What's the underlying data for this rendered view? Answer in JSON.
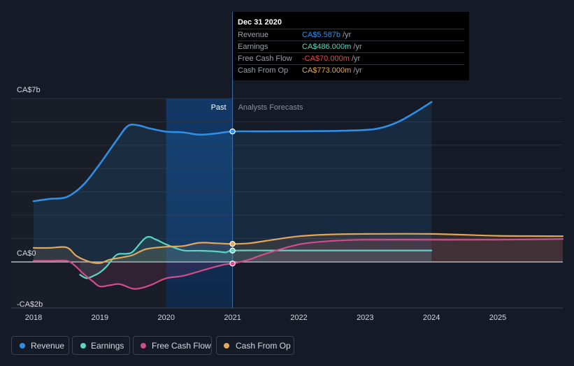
{
  "chart_data": {
    "type": "line",
    "title": "",
    "xlabel": "",
    "ylabel": "",
    "y_axis": {
      "unit": "CA$ billions",
      "ylim": [
        -2.0,
        7.0
      ],
      "tick_labels": [
        {
          "value": 7,
          "label": "CA$7b"
        },
        {
          "value": 0,
          "label": "CA$0"
        },
        {
          "value": -2,
          "label": "-CA$2b"
        }
      ]
    },
    "x_axis": {
      "xlim": [
        2018.0,
        2025.98
      ],
      "ticks": [
        {
          "value": 2018,
          "label": "2018"
        },
        {
          "value": 2019,
          "label": "2019"
        },
        {
          "value": 2020,
          "label": "2020"
        },
        {
          "value": 2021,
          "label": "2021"
        },
        {
          "value": 2022,
          "label": "2022"
        },
        {
          "value": 2023,
          "label": "2023"
        },
        {
          "value": 2024,
          "label": "2024"
        },
        {
          "value": 2025,
          "label": "2025"
        }
      ]
    },
    "past_label": "Past",
    "forecast_label": "Analysts Forecasts",
    "divider_x": 2021.0,
    "highlight_range": [
      2020.0,
      2021.0
    ],
    "series": [
      {
        "name": "Revenue",
        "color": "#2f8fe6",
        "points": [
          [
            2018.0,
            2.6
          ],
          [
            2018.25,
            2.7
          ],
          [
            2018.5,
            2.78
          ],
          [
            2018.75,
            3.3
          ],
          [
            2019.0,
            4.2
          ],
          [
            2019.25,
            5.2
          ],
          [
            2019.42,
            5.82
          ],
          [
            2019.58,
            5.85
          ],
          [
            2019.75,
            5.72
          ],
          [
            2020.0,
            5.58
          ],
          [
            2020.25,
            5.55
          ],
          [
            2020.5,
            5.45
          ],
          [
            2020.75,
            5.5
          ],
          [
            2021.0,
            5.587
          ],
          [
            2021.5,
            5.59
          ],
          [
            2022.0,
            5.6
          ],
          [
            2022.5,
            5.61
          ],
          [
            2023.0,
            5.65
          ],
          [
            2023.25,
            5.75
          ],
          [
            2023.5,
            6.0
          ],
          [
            2023.75,
            6.4
          ],
          [
            2024.0,
            6.85
          ]
        ],
        "marker_value": "CA$5.587b"
      },
      {
        "name": "Earnings",
        "color": "#5ad6c3",
        "points": [
          [
            2018.7,
            -0.55
          ],
          [
            2018.8,
            -0.7
          ],
          [
            2018.9,
            -0.6
          ],
          [
            2019.0,
            -0.45
          ],
          [
            2019.1,
            -0.2
          ],
          [
            2019.25,
            0.3
          ],
          [
            2019.4,
            0.35
          ],
          [
            2019.5,
            0.45
          ],
          [
            2019.7,
            1.05
          ],
          [
            2019.85,
            0.95
          ],
          [
            2020.0,
            0.75
          ],
          [
            2020.25,
            0.5
          ],
          [
            2020.5,
            0.48
          ],
          [
            2020.75,
            0.45
          ],
          [
            2020.9,
            0.41
          ],
          [
            2021.0,
            0.486
          ],
          [
            2021.5,
            0.49
          ],
          [
            2022.0,
            0.49
          ],
          [
            2023.0,
            0.49
          ],
          [
            2024.0,
            0.49
          ]
        ],
        "marker_value": "CA$486.000m"
      },
      {
        "name": "Free Cash Flow",
        "color": "#d14d8b",
        "points": [
          [
            2018.0,
            0.05
          ],
          [
            2018.25,
            0.05
          ],
          [
            2018.5,
            0.05
          ],
          [
            2018.62,
            -0.15
          ],
          [
            2018.75,
            -0.5
          ],
          [
            2018.9,
            -0.85
          ],
          [
            2019.0,
            -1.05
          ],
          [
            2019.15,
            -1.0
          ],
          [
            2019.3,
            -0.95
          ],
          [
            2019.5,
            -1.15
          ],
          [
            2019.65,
            -1.1
          ],
          [
            2019.8,
            -0.95
          ],
          [
            2020.0,
            -0.7
          ],
          [
            2020.25,
            -0.6
          ],
          [
            2020.5,
            -0.4
          ],
          [
            2020.75,
            -0.2
          ],
          [
            2020.9,
            -0.1
          ],
          [
            2021.0,
            -0.07
          ],
          [
            2021.25,
            0.1
          ],
          [
            2021.5,
            0.35
          ],
          [
            2022.0,
            0.75
          ],
          [
            2022.5,
            0.9
          ],
          [
            2023.0,
            0.95
          ],
          [
            2024.0,
            0.95
          ],
          [
            2025.0,
            0.95
          ],
          [
            2025.98,
            0.98
          ]
        ],
        "marker_value": "-CA$70.000m"
      },
      {
        "name": "Cash From Op",
        "color": "#e3a65a",
        "points": [
          [
            2018.0,
            0.6
          ],
          [
            2018.25,
            0.6
          ],
          [
            2018.5,
            0.62
          ],
          [
            2018.65,
            0.25
          ],
          [
            2018.85,
            0.0
          ],
          [
            2019.0,
            -0.05
          ],
          [
            2019.15,
            0.1
          ],
          [
            2019.35,
            0.2
          ],
          [
            2019.5,
            0.3
          ],
          [
            2019.7,
            0.55
          ],
          [
            2020.0,
            0.65
          ],
          [
            2020.25,
            0.68
          ],
          [
            2020.5,
            0.82
          ],
          [
            2020.75,
            0.8
          ],
          [
            2021.0,
            0.773
          ],
          [
            2021.25,
            0.8
          ],
          [
            2021.5,
            0.9
          ],
          [
            2022.0,
            1.1
          ],
          [
            2022.5,
            1.18
          ],
          [
            2023.0,
            1.2
          ],
          [
            2024.0,
            1.2
          ],
          [
            2025.0,
            1.12
          ],
          [
            2025.98,
            1.1
          ]
        ],
        "marker_value": "CA$773.000m"
      }
    ]
  },
  "tooltip": {
    "date": "Dec 31 2020",
    "unit": "/yr",
    "rows": [
      {
        "label": "Revenue",
        "value": "CA$5.587b",
        "color": "#2f8fe6"
      },
      {
        "label": "Earnings",
        "value": "CA$486.000m",
        "color": "#5ad6c3"
      },
      {
        "label": "Free Cash Flow",
        "value": "-CA$70.000m",
        "color": "#e24b4b"
      },
      {
        "label": "Cash From Op",
        "value": "CA$773.000m",
        "color": "#e3a65a"
      }
    ]
  },
  "legend": {
    "items": [
      {
        "label": "Revenue",
        "color": "#2f8fe6"
      },
      {
        "label": "Earnings",
        "color": "#5ad6c3"
      },
      {
        "label": "Free Cash Flow",
        "color": "#d14d8b"
      },
      {
        "label": "Cash From Op",
        "color": "#e3a65a"
      }
    ]
  }
}
